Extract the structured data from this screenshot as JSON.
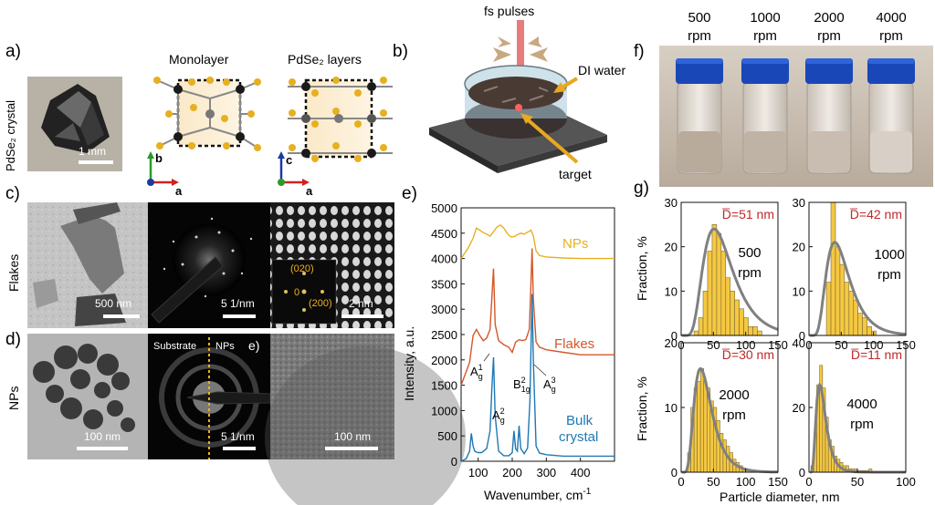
{
  "panels": {
    "a": "a)",
    "b": "b)",
    "c": "c)",
    "d": "d)",
    "e": "e)",
    "f": "f)",
    "g": "g)"
  },
  "panel_a": {
    "crystal_label": "PdSe₂ crystal",
    "crystal_scale": "1 mm",
    "monolayer_title": "Monolayer",
    "layers_title": "PdSe₂ layers",
    "axis_b": "b",
    "axis_a1": "a",
    "axis_c": "c",
    "axis_a2": "a"
  },
  "panel_b": {
    "pulses": "fs pulses",
    "water": "DI water",
    "target": "target"
  },
  "panel_c": {
    "row_label": "Flakes",
    "scale1": "500 nm",
    "scale2": "5 1/nm",
    "scale3": "2 nm",
    "fft_020": "(020)",
    "fft_0": "0",
    "fft_200": "(200)"
  },
  "panel_d": {
    "row_label": "NPs",
    "scale1": "100 nm",
    "substrate": "Substrate",
    "nps": "NPs",
    "scale2": "5 1/nm",
    "inner_e": "e)",
    "scale3": "100 nm"
  },
  "panel_e": {
    "x_axis_label": "Wavenumber, cm",
    "x_axis_exp": "-1",
    "y_axis_label": "Intensity, a.u.",
    "label_nps": "NPs",
    "label_flakes": "Flakes",
    "label_bulk1": "Bulk",
    "label_bulk2": "crystal",
    "peak_A1g": "A",
    "peak_A1g_sup": "1",
    "peak_A1g_sub": "g",
    "peak_A2g": "A",
    "peak_A2g_sup": "2",
    "peak_A2g_sub": "g",
    "peak_B21g": "B",
    "peak_B21g_sup": "2",
    "peak_B21g_sub": "1g",
    "peak_A3g": "A",
    "peak_A3g_sup": "3",
    "peak_A3g_sub": "g"
  },
  "panel_f": {
    "rpm_values": [
      "500",
      "1000",
      "2000",
      "4000"
    ],
    "rpm_unit": "rpm"
  },
  "panel_g": {
    "y_axis_label": "Fraction, %",
    "x_axis_label": "Particle diameter, nm",
    "subplots": [
      {
        "dbar": "D̅=51 nm",
        "speed": "500",
        "unit": "rpm"
      },
      {
        "dbar": "D̅=42 nm",
        "speed": "1000",
        "unit": "rpm"
      },
      {
        "dbar": "D̅=30 nm",
        "speed": "2000",
        "unit": "rpm"
      },
      {
        "dbar": "D̅=11 nm",
        "speed": "4000",
        "unit": "rpm"
      }
    ]
  },
  "colors": {
    "nps_line": "#e8b020",
    "flakes_line": "#d4572a",
    "bulk_line": "#1f78b4",
    "hist_fill": "#f5c842",
    "fit_line": "#808080",
    "dbar_text": "#c0282a",
    "fft_label": "#f0b020"
  },
  "chart_data": [
    {
      "type": "line",
      "panel": "e",
      "xlabel": "Wavenumber, cm-1",
      "ylabel": "Intensity, a.u.",
      "xlim": [
        50,
        500
      ],
      "ylim": [
        0,
        5000
      ],
      "xticks": [
        100,
        200,
        300,
        400
      ],
      "yticks": [
        0,
        500,
        1000,
        1500,
        2000,
        2500,
        3000,
        3500,
        4000,
        4500,
        5000
      ],
      "series": [
        {
          "name": "NPs",
          "x": [
            50,
            70,
            85,
            95,
            105,
            115,
            125,
            135,
            145,
            155,
            165,
            175,
            185,
            195,
            205,
            215,
            225,
            235,
            245,
            255,
            262,
            270,
            280,
            300,
            350,
            400,
            450,
            500
          ],
          "y": [
            4000,
            4200,
            4400,
            4600,
            4560,
            4510,
            4480,
            4440,
            4530,
            4620,
            4660,
            4600,
            4500,
            4430,
            4430,
            4470,
            4500,
            4480,
            4520,
            4560,
            4450,
            4150,
            4060,
            4030,
            4010,
            4000,
            4000,
            4000
          ]
        },
        {
          "name": "Flakes",
          "x": [
            50,
            75,
            85,
            95,
            105,
            115,
            125,
            135,
            140,
            145,
            150,
            160,
            175,
            190,
            200,
            210,
            220,
            230,
            240,
            250,
            255,
            258,
            262,
            270,
            280,
            300,
            350,
            400,
            450,
            500
          ],
          "y": [
            1500,
            1950,
            2480,
            2600,
            2480,
            2380,
            2430,
            2600,
            3200,
            3800,
            2700,
            2380,
            2300,
            2250,
            2150,
            2350,
            2400,
            2380,
            2400,
            2600,
            3500,
            4200,
            3200,
            2350,
            2250,
            2200,
            2150,
            2100,
            2100,
            2100
          ]
        },
        {
          "name": "Bulk crystal",
          "x": [
            50,
            65,
            75,
            80,
            85,
            90,
            95,
            100,
            110,
            125,
            135,
            140,
            145,
            150,
            160,
            175,
            190,
            200,
            205,
            210,
            215,
            220,
            225,
            235,
            245,
            252,
            258,
            262,
            270,
            280,
            300,
            350,
            400,
            450,
            500
          ],
          "y": [
            0,
            50,
            200,
            550,
            300,
            200,
            180,
            170,
            170,
            250,
            600,
            1400,
            2050,
            900,
            200,
            110,
            110,
            170,
            600,
            250,
            200,
            700,
            250,
            150,
            260,
            1200,
            3300,
            2000,
            300,
            160,
            130,
            100,
            100,
            100,
            100
          ]
        }
      ]
    },
    {
      "type": "bar",
      "panel": "g",
      "title": "500 rpm",
      "xlim": [
        0,
        150
      ],
      "ylim": [
        0,
        30
      ],
      "xticks": [
        0,
        50,
        100,
        150
      ],
      "yticks": [
        0,
        10,
        20,
        30
      ],
      "bin_width": 7,
      "bins_start": [
        20,
        27,
        34,
        41,
        48,
        55,
        62,
        69,
        76,
        83,
        90,
        97,
        104,
        111,
        118
      ],
      "values": [
        1,
        4,
        10,
        19,
        25,
        23,
        19,
        13,
        10,
        8,
        6,
        4,
        2,
        2,
        1
      ],
      "fit_peak": 24,
      "fit_mode": 51
    },
    {
      "type": "bar",
      "panel": "g",
      "title": "1000 rpm",
      "xlim": [
        0,
        150
      ],
      "ylim": [
        0,
        30
      ],
      "xticks": [
        0,
        50,
        100,
        150
      ],
      "yticks": [
        0,
        10,
        20,
        30
      ],
      "bin_width": 7,
      "bins_start": [
        20,
        27,
        34,
        41,
        48,
        55,
        62,
        69,
        76,
        83,
        90,
        97
      ],
      "values": [
        0,
        12,
        30,
        20,
        16,
        12,
        10,
        8,
        5,
        4,
        2,
        1
      ],
      "fit_peak": 21,
      "fit_mode": 40
    },
    {
      "type": "bar",
      "panel": "g",
      "title": "2000 rpm",
      "xlim": [
        0,
        150
      ],
      "ylim": [
        0,
        20
      ],
      "xticks": [
        0,
        50,
        100,
        150
      ],
      "yticks": [
        0,
        10,
        20
      ],
      "bin_width": 5,
      "bins_start": [
        10,
        15,
        20,
        25,
        30,
        35,
        40,
        45,
        50,
        55,
        60,
        65,
        70,
        75,
        80,
        85,
        90,
        95,
        100
      ],
      "values": [
        3,
        10,
        13,
        14,
        16,
        14,
        13,
        11,
        10,
        8,
        6,
        5,
        4,
        3,
        2,
        1.5,
        1,
        0.5,
        0.5
      ],
      "fit_peak": 16,
      "fit_mode": 30
    },
    {
      "type": "bar",
      "panel": "g",
      "title": "4000 rpm",
      "xlim": [
        0,
        100
      ],
      "ylim": [
        0,
        40
      ],
      "xticks": [
        0,
        50,
        100
      ],
      "yticks": [
        0,
        20,
        40
      ],
      "bin_width": 3,
      "bins_start": [
        2,
        5,
        8,
        11,
        14,
        17,
        20,
        23,
        26,
        29,
        32,
        35,
        38,
        41,
        44,
        47,
        50,
        53,
        56,
        59,
        62
      ],
      "values": [
        2,
        12,
        27,
        33,
        26,
        17,
        10,
        8,
        5,
        4,
        3,
        2,
        2,
        1,
        1,
        1,
        0.5,
        0.5,
        0.5,
        0.5,
        1
      ],
      "fit_peak": 27,
      "fit_mode": 11
    }
  ]
}
